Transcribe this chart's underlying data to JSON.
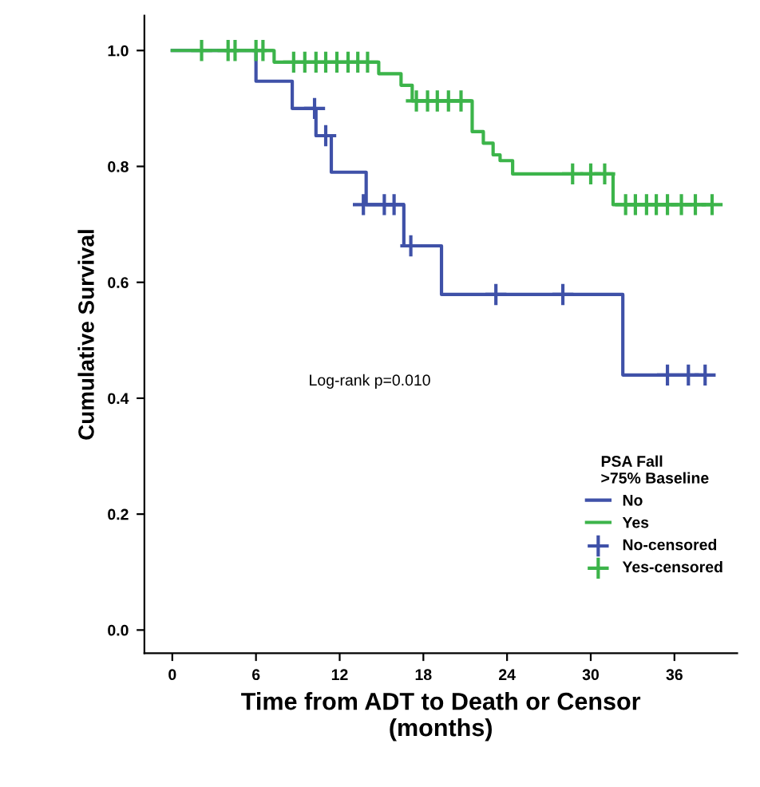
{
  "chart_data": {
    "type": "step",
    "xlabel": "Time from ADT to Death or Censor\n(months)",
    "ylabel": "Cumulative Survival",
    "legend_title": "PSA Fall\n>75% Baseline",
    "legend": "bottom right",
    "grid": false,
    "annotations": [
      "Log-rank p=0.010"
    ],
    "xlim": [
      -2,
      40.5
    ],
    "xticks": [
      0,
      6,
      12,
      18,
      24,
      30,
      36
    ],
    "ylim": [
      -0.04,
      1.06
    ],
    "yticks": [
      {
        "value": 0,
        "label": "0.0"
      },
      0.2,
      0.4,
      0.6,
      0.8,
      {
        "value": 1,
        "label": "1.0"
      }
    ],
    "series": [
      {
        "name": "No",
        "color": "#3f51a8",
        "x": [
          0,
          6,
          8.6,
          10.3,
          11.4,
          13.9,
          16.6,
          19.3,
          32.3,
          38.2
        ],
        "values": [
          1,
          0.947,
          0.9,
          0.853,
          0.79,
          0.734,
          0.663,
          0.579,
          0.44,
          0.44
        ]
      },
      {
        "name": "Yes",
        "color": "#3cb44a",
        "x": [
          0,
          7.3,
          14.8,
          16.4,
          17.2,
          21.5,
          22.3,
          23,
          23.5,
          24.4,
          31.6,
          38.7
        ],
        "values": [
          1,
          0.98,
          0.96,
          0.94,
          0.913,
          0.86,
          0.84,
          0.82,
          0.81,
          0.787,
          0.734,
          0.734
        ]
      },
      {
        "name": "No-censored",
        "type": "scatter",
        "marker": "cross",
        "color": "#3f51a8",
        "x": [
          10.2,
          11,
          13.7,
          15.2,
          15.9,
          17.1,
          23.2,
          28,
          35.5,
          37,
          38.2
        ],
        "values": [
          0.9,
          0.853,
          0.734,
          0.734,
          0.734,
          0.663,
          0.579,
          0.579,
          0.44,
          0.44,
          0.44
        ]
      },
      {
        "name": "Yes-censored",
        "type": "scatter",
        "marker": "cross",
        "color": "#3cb44a",
        "x": [
          2.1,
          4,
          4.5,
          6,
          6.5,
          8.7,
          9.5,
          10.3,
          11,
          11.8,
          12.6,
          13.3,
          14,
          17.5,
          18.3,
          19,
          19.8,
          20.7,
          28.7,
          30,
          31,
          32.5,
          33.2,
          34,
          34.7,
          35.5,
          36.5,
          37.5,
          38.7
        ],
        "values": [
          1,
          1,
          1,
          1,
          1,
          0.98,
          0.98,
          0.98,
          0.98,
          0.98,
          0.98,
          0.98,
          0.98,
          0.913,
          0.913,
          0.913,
          0.913,
          0.913,
          0.787,
          0.787,
          0.787,
          0.734,
          0.734,
          0.734,
          0.734,
          0.734,
          0.734,
          0.734,
          0.734
        ]
      }
    ]
  }
}
